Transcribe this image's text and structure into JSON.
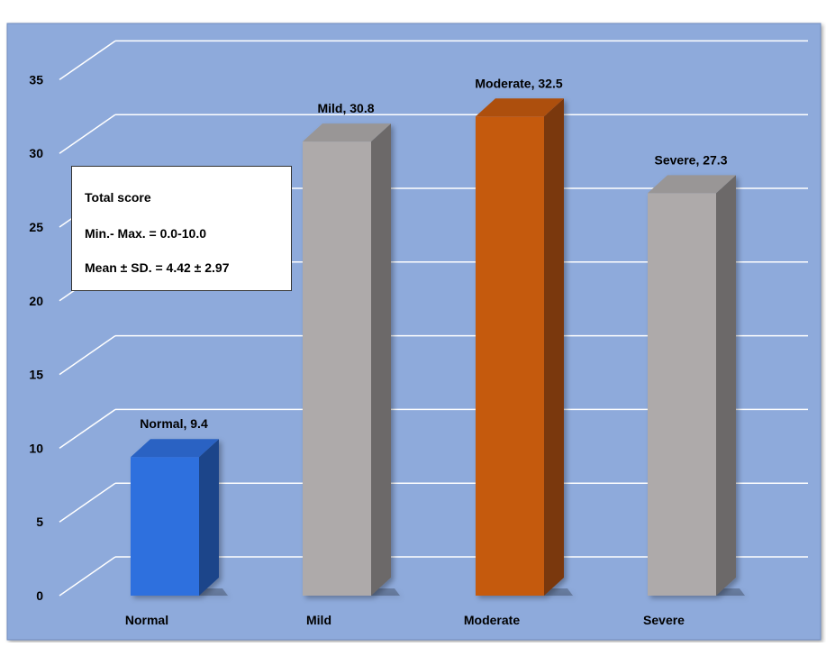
{
  "chart_data": {
    "type": "bar",
    "categories": [
      "Normal",
      "Mild",
      "Moderate",
      "Severe"
    ],
    "values": [
      9.4,
      30.8,
      32.5,
      27.3
    ],
    "data_labels": [
      "Normal, 9.4",
      "Mild, 30.8",
      "Moderate, 32.5",
      "Severe, 27.3"
    ],
    "title": "",
    "xlabel": "",
    "ylabel": "",
    "ylim": [
      0,
      35
    ],
    "yticks": [
      "0",
      "5",
      "10",
      "15",
      "20",
      "25",
      "30",
      "35"
    ],
    "grid": true,
    "style": "3d-column",
    "colors": {
      "plot_background": "#8eaadb",
      "Normal": "#2f6fde",
      "Mild": "#aeaaaa",
      "Moderate": "#c55a11",
      "Severe": "#aeaaaa",
      "gridline": "#ffffff"
    }
  },
  "info_box": {
    "title": "Total score",
    "range": "Min.- Max. = 0.0-10.0",
    "mean": "Mean ± SD. = 4.42 ± 2.97"
  }
}
